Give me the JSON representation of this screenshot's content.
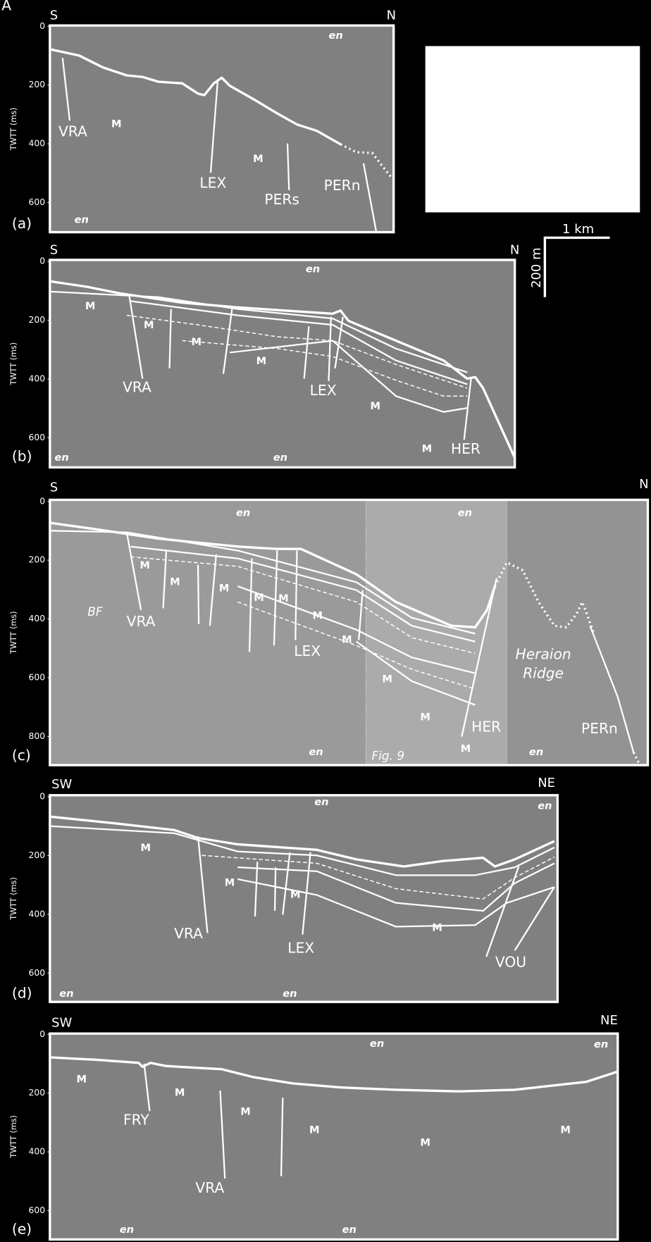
{
  "figure_label": "A",
  "scale_bar": {
    "horizontal": "1 km",
    "vertical": "200 m"
  },
  "panels": [
    {
      "letter": "(a)",
      "left": "S",
      "right": "N",
      "axis_label": "TWTT (ms)",
      "ticks": [
        0,
        200,
        400,
        600
      ],
      "labels": [
        "VRA",
        "M",
        "LEX",
        "M",
        "PERs",
        "PERn",
        "en",
        "en"
      ]
    },
    {
      "letter": "(b)",
      "left": "S",
      "right": "N",
      "axis_label": "TWTT (ms)",
      "ticks": [
        0,
        200,
        400,
        600
      ],
      "labels": [
        "M",
        "M",
        "M",
        "M",
        "VRA",
        "LEX",
        "M",
        "M",
        "HER",
        "en",
        "en",
        "en"
      ]
    },
    {
      "letter": "(c)",
      "left": "S",
      "right": "N",
      "axis_label": "TWTT (ms)",
      "ticks": [
        0,
        200,
        400,
        600,
        800
      ],
      "labels": [
        "en",
        "en",
        "BF",
        "VRA",
        "M",
        "M",
        "M",
        "M",
        "M",
        "M",
        "LEX",
        "M",
        "M",
        "M",
        "HER",
        "M",
        "Heraion",
        "Ridge",
        "PERn",
        "en",
        "en",
        "Fig. 9"
      ]
    },
    {
      "letter": "(d)",
      "left": "SW",
      "right": "NE",
      "axis_label": "TWTT (ms)",
      "ticks": [
        0,
        200,
        400,
        600
      ],
      "labels": [
        "en",
        "en",
        "M",
        "M",
        "M",
        "M",
        "VRA",
        "LEX",
        "VOU",
        "en",
        "en"
      ]
    },
    {
      "letter": "(e)",
      "left": "SW",
      "right": "NE",
      "axis_label": "TWTT (ms)",
      "ticks": [
        0,
        200,
        400,
        600
      ],
      "labels": [
        "en",
        "en",
        "M",
        "M",
        "M",
        "M",
        "M",
        "M",
        "FRY",
        "VRA",
        "en",
        "en"
      ]
    }
  ]
}
